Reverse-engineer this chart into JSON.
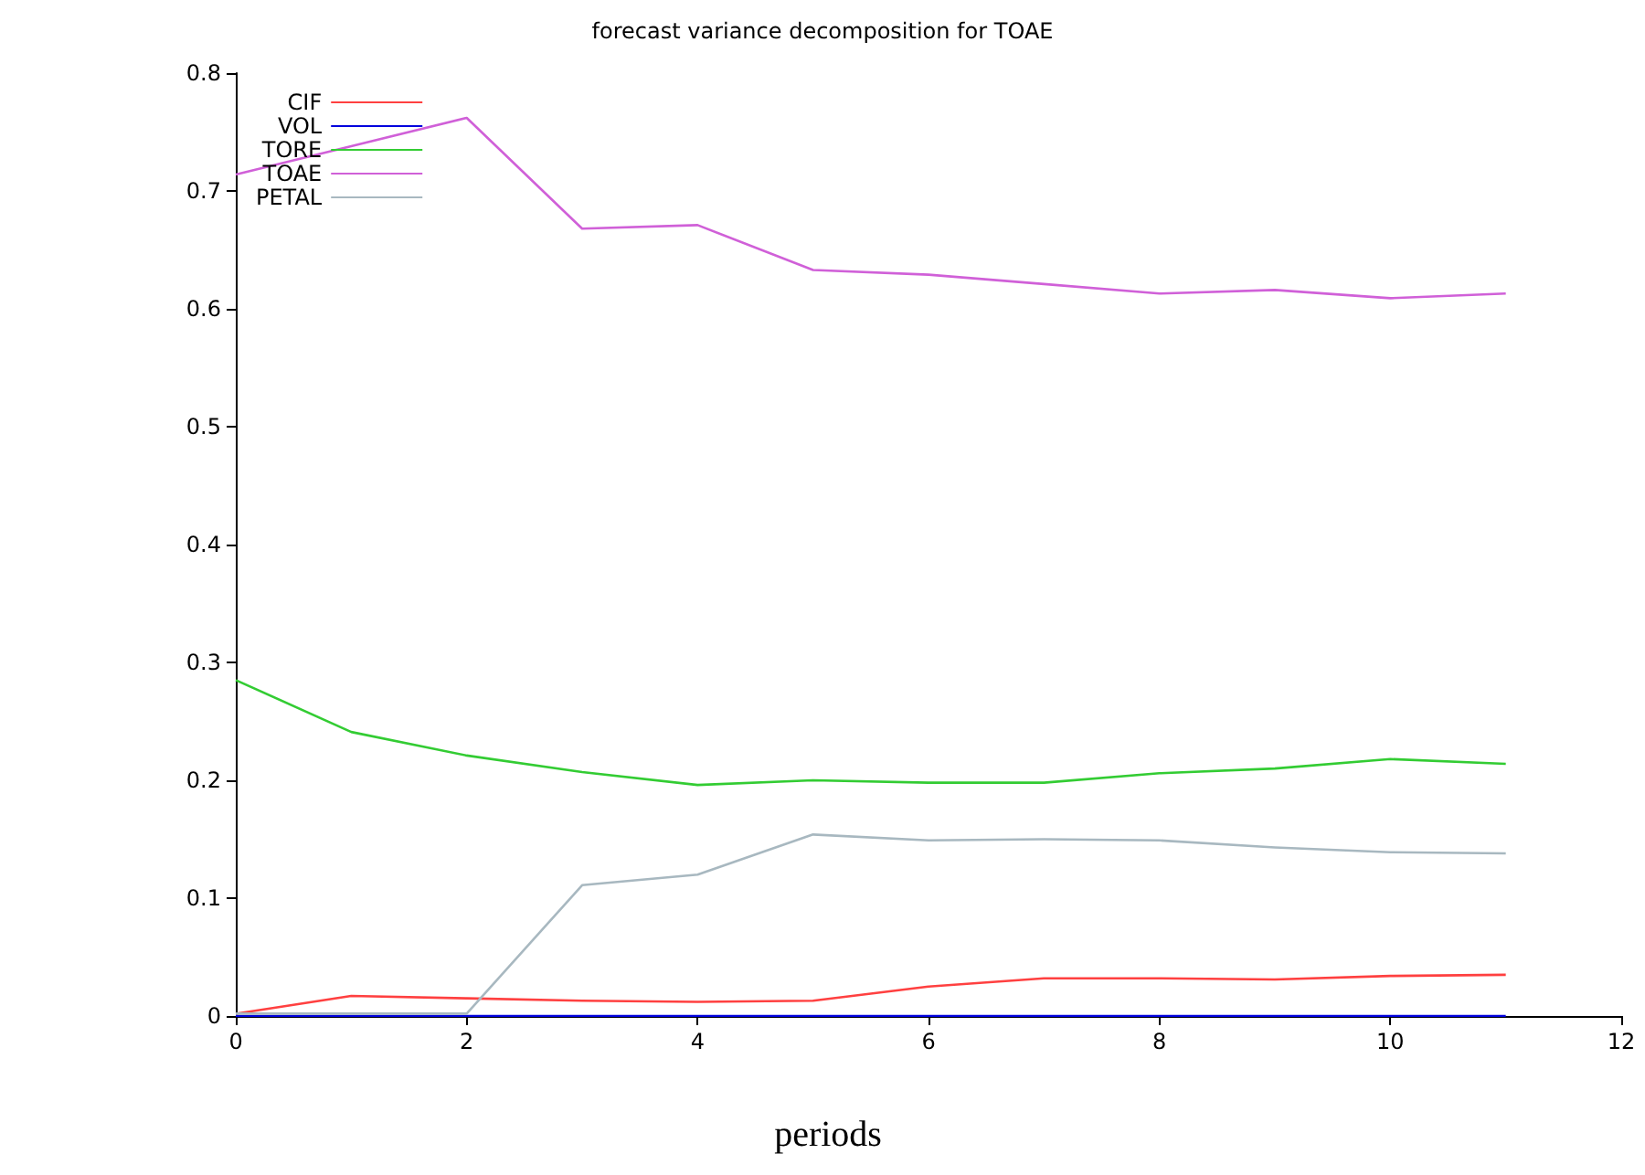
{
  "chart_data": {
    "type": "line",
    "title": "forecast variance decomposition for TOAE",
    "xlabel": "periods",
    "x": [
      0,
      1,
      2,
      3,
      4,
      5,
      6,
      7,
      8,
      9,
      10,
      11
    ],
    "series": [
      {
        "name": "CIF",
        "color": "#ff4040",
        "values": [
          0.002,
          0.017,
          0.015,
          0.013,
          0.012,
          0.013,
          0.025,
          0.032,
          0.032,
          0.031,
          0.034,
          0.035
        ]
      },
      {
        "name": "VOL",
        "color": "#0000dd",
        "values": [
          0,
          0,
          0,
          0,
          0,
          0,
          0,
          0,
          0,
          0,
          0,
          0
        ]
      },
      {
        "name": "TORE",
        "color": "#33cc33",
        "values": [
          0.285,
          0.241,
          0.221,
          0.207,
          0.196,
          0.2,
          0.198,
          0.198,
          0.206,
          0.21,
          0.218,
          0.214
        ]
      },
      {
        "name": "TOAE",
        "color": "#d060d8",
        "values": [
          0.714,
          0.738,
          0.762,
          0.668,
          0.671,
          0.633,
          0.629,
          0.621,
          0.613,
          0.616,
          0.609,
          0.613
        ]
      },
      {
        "name": "PETAL",
        "color": "#a8b8c0",
        "values": [
          0.002,
          0.002,
          0.002,
          0.111,
          0.12,
          0.154,
          0.149,
          0.15,
          0.149,
          0.143,
          0.139,
          0.138
        ]
      }
    ],
    "xlim": [
      0,
      12
    ],
    "xticks": [
      0,
      2,
      4,
      6,
      8,
      10,
      12
    ],
    "ylim": [
      0,
      0.8
    ],
    "yticks": [
      0,
      0.1,
      0.2,
      0.3,
      0.4,
      0.5,
      0.6,
      0.7,
      0.8
    ],
    "grid": false,
    "legend": "top left",
    "marker": "none",
    "line_style": "solid"
  }
}
